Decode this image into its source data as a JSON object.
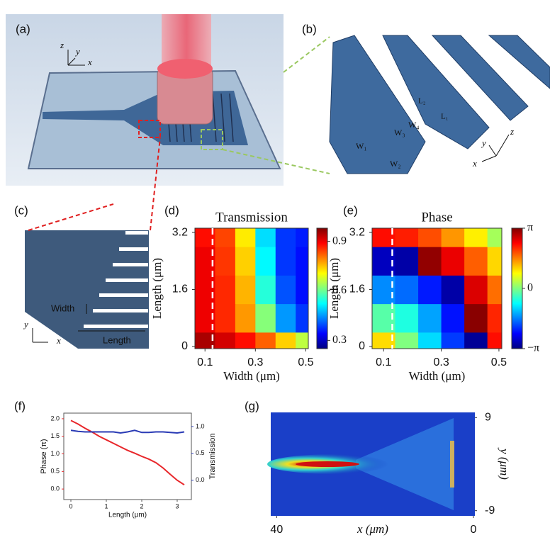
{
  "panel_labels": [
    "(a)",
    "(b)",
    "(c)",
    "(d)",
    "(e)",
    "(f)",
    "(g)"
  ],
  "illustrations": {
    "a": {
      "axes": [
        "z",
        "y",
        "x"
      ]
    },
    "b": {
      "labels": [
        "L₂",
        "L₁",
        "W₁",
        "W₂",
        "W₃",
        "W₄"
      ],
      "axes": [
        "z",
        "y",
        "x"
      ]
    },
    "c": {
      "labels": [
        "Width",
        "Length"
      ],
      "axes": [
        "y",
        "x"
      ]
    }
  },
  "chart_data": [
    {
      "type": "heatmap",
      "title": "Transmission",
      "x_label": "Width (μm)",
      "y_label": "Length (μm)",
      "x": [
        0.1,
        0.18,
        0.26,
        0.34,
        0.42,
        0.5
      ],
      "y": [
        0,
        0.8,
        1.6,
        2.4,
        3.2
      ],
      "z": [
        [
          0.95,
          0.92,
          0.88,
          0.82,
          0.74,
          0.66
        ],
        [
          0.9,
          0.86,
          0.78,
          0.62,
          0.45,
          0.38
        ],
        [
          0.9,
          0.86,
          0.76,
          0.55,
          0.4,
          0.35
        ],
        [
          0.9,
          0.85,
          0.74,
          0.52,
          0.38,
          0.35
        ],
        [
          0.88,
          0.84,
          0.72,
          0.5,
          0.38,
          0.36
        ]
      ],
      "xlim": [
        0.06,
        0.51
      ],
      "ylim": [
        -0.06,
        3.32
      ],
      "xticks": [
        0.1,
        0.3,
        0.5
      ],
      "yticks": [
        0,
        1.6,
        3.2
      ],
      "colormap": "jet",
      "zlim": [
        0.25,
        0.98
      ],
      "colorbar_ticks": [
        0.3,
        0.6,
        0.9
      ],
      "reference_x": 0.13
    },
    {
      "type": "heatmap",
      "title": "Phase",
      "x_label": "Width (μm)",
      "y_label": "Length (μm)",
      "x": [
        0.1,
        0.18,
        0.26,
        0.34,
        0.42,
        0.5
      ],
      "y": [
        0,
        0.8,
        1.6,
        2.4,
        3.2
      ],
      "z": [
        [
          1.0,
          0,
          -1.0,
          -2.0,
          -3.0,
          2.28
        ],
        [
          -0.25,
          -0.6,
          -1.35,
          -2.25,
          3.08,
          2.13
        ],
        [
          -1.5,
          -1.7,
          -2.2,
          -2.9,
          2.58,
          1.68
        ],
        [
          -2.75,
          -2.9,
          3.03,
          2.48,
          1.78,
          1.03
        ],
        [
          2.28,
          2.18,
          1.88,
          1.43,
          0.88,
          0.23
        ]
      ],
      "xlim": [
        0.06,
        0.51
      ],
      "ylim": [
        -0.06,
        3.32
      ],
      "xticks": [
        0.1,
        0.3,
        0.5
      ],
      "yticks": [
        0,
        1.6,
        3.2
      ],
      "colormap": "jet",
      "zlim": [
        -3.1416,
        3.1416
      ],
      "colorbar_ticks": [
        {
          "value": 3.1416,
          "label": "π"
        },
        0,
        {
          "value": -3.1416,
          "label": "−π"
        }
      ],
      "reference_x": 0.13
    },
    {
      "type": "line",
      "x_label": "Length (μm)",
      "y_label": "Phase (π)",
      "y2_label": "Transmission",
      "x": [
        0,
        0.2,
        0.4,
        0.6,
        0.8,
        1.0,
        1.2,
        1.4,
        1.6,
        1.8,
        2.0,
        2.2,
        2.4,
        2.6,
        2.8,
        3.0,
        3.2
      ],
      "series": [
        {
          "name": "Phase",
          "color": "#e8262a",
          "values": [
            1.95,
            1.85,
            1.73,
            1.62,
            1.5,
            1.4,
            1.3,
            1.2,
            1.1,
            1.02,
            0.93,
            0.85,
            0.75,
            0.6,
            0.42,
            0.25,
            0.12
          ]
        },
        {
          "name": "Transmission",
          "color": "#2a3bb5",
          "axis": "y2",
          "values": [
            0.93,
            0.91,
            0.9,
            0.9,
            0.9,
            0.9,
            0.9,
            0.88,
            0.9,
            0.93,
            0.89,
            0.89,
            0.9,
            0.9,
            0.89,
            0.88,
            0.9
          ]
        }
      ],
      "xlim": [
        -0.2,
        3.4
      ],
      "ylim": [
        -0.3,
        2.16
      ],
      "y2lim": [
        -0.36,
        1.25
      ],
      "xticks": [
        0,
        1,
        2,
        3
      ],
      "yticks": [
        {
          "value": 0,
          "label": "0.0"
        },
        {
          "value": 0.5,
          "label": "0.5"
        },
        {
          "value": 1,
          "label": "1.0"
        },
        {
          "value": 1.5,
          "label": "1.5"
        },
        {
          "value": 2,
          "label": "2.0"
        }
      ],
      "y2ticks": [
        {
          "value": 0,
          "label": "0.0"
        },
        {
          "value": 0.5,
          "label": "0.5"
        },
        {
          "value": 1,
          "label": "1.0"
        }
      ]
    },
    {
      "type": "field",
      "x_label": "x (μm)",
      "y_label": "y (μm)",
      "xlim": [
        41.2,
        -0.3
      ],
      "ylim": [
        -10,
        10
      ],
      "xticks": [
        40,
        0
      ],
      "yticks": [
        9,
        -9
      ]
    }
  ]
}
